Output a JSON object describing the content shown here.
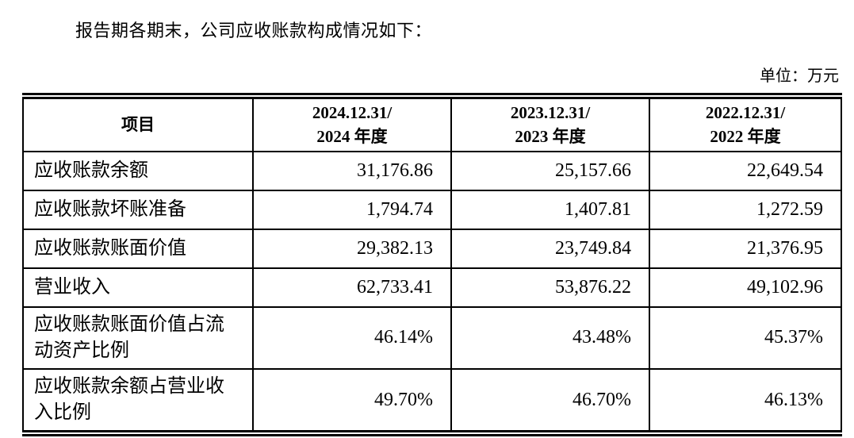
{
  "page": {
    "title": "报告期各期末，公司应收账款构成情况如下：",
    "unit_label": "单位：万元"
  },
  "table": {
    "header": {
      "item": "项目",
      "periods": [
        {
          "line1": "2024.12.31/",
          "line2": "2024 年度"
        },
        {
          "line1": "2023.12.31/",
          "line2": "2023 年度"
        },
        {
          "line1": "2022.12.31/",
          "line2": "2022 年度"
        }
      ]
    },
    "rows": [
      {
        "label": "应收账款余额",
        "values": [
          "31,176.86",
          "25,157.66",
          "22,649.54"
        ]
      },
      {
        "label": "应收账款坏账准备",
        "values": [
          "1,794.74",
          "1,407.81",
          "1,272.59"
        ]
      },
      {
        "label": "应收账款账面价值",
        "values": [
          "29,382.13",
          "23,749.84",
          "21,376.95"
        ]
      },
      {
        "label": "营业收入",
        "values": [
          "62,733.41",
          "53,876.22",
          "49,102.96"
        ]
      },
      {
        "label": "应收账款账面价值占流动资产比例",
        "values": [
          "46.14%",
          "43.48%",
          "45.37%"
        ]
      },
      {
        "label": "应收账款余额占营业收入比例",
        "values": [
          "49.70%",
          "46.70%",
          "46.13%"
        ]
      }
    ]
  },
  "colors": {
    "text": "#000000",
    "background": "#ffffff",
    "border": "#000000"
  }
}
